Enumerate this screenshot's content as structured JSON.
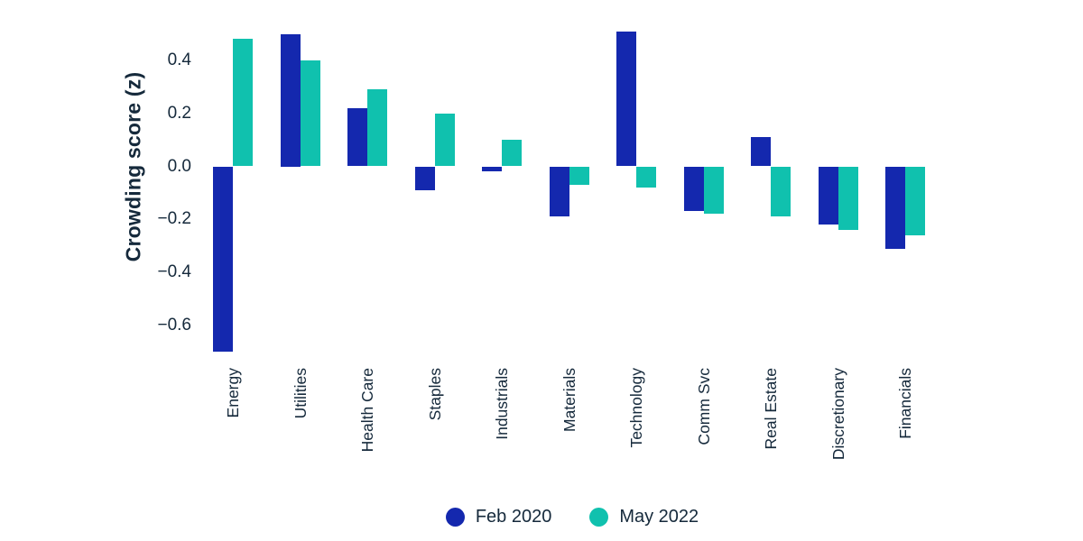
{
  "chart_data": {
    "type": "bar",
    "title": "",
    "xlabel": "",
    "ylabel": "Crowding score (z)",
    "categories": [
      "Energy",
      "Utilities",
      "Health Care",
      "Staples",
      "Industrials",
      "Materials",
      "Technology",
      "Comm Svc",
      "Real Estate",
      "Discretionary",
      "Financials"
    ],
    "series": [
      {
        "name": "Feb 2020",
        "color": "#1428ae",
        "values": [
          -0.7,
          0.5,
          0.22,
          -0.09,
          -0.02,
          -0.19,
          0.51,
          -0.17,
          0.11,
          -0.22,
          -0.31
        ]
      },
      {
        "name": "May 2022",
        "color": "#10c1ae",
        "values": [
          0.48,
          0.4,
          0.29,
          0.2,
          0.1,
          -0.07,
          -0.08,
          -0.18,
          -0.19,
          -0.24,
          -0.26
        ]
      }
    ],
    "yticks": [
      0.4,
      0.2,
      0.0,
      -0.2,
      -0.4,
      -0.6
    ],
    "ylim": [
      -0.72,
      0.56
    ],
    "grid": false,
    "axis_lines": false,
    "legend_position": "bottom",
    "bar_orientation": "vertical",
    "xtick_rotation": 90
  },
  "colors": {
    "background": "#ffffff",
    "text": "#15293b",
    "series_feb_2020": "#1428ae",
    "series_may_2022": "#10c1ae"
  }
}
